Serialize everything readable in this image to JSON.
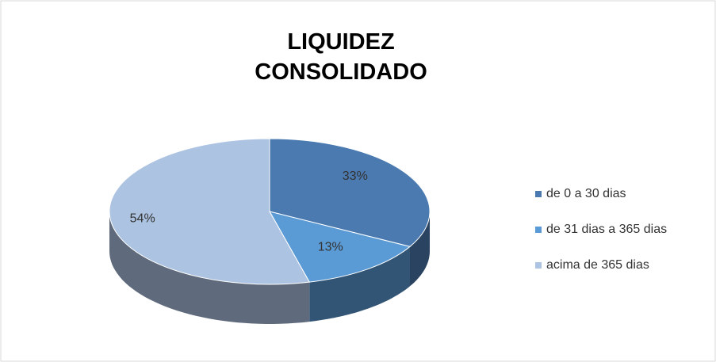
{
  "chart_data": {
    "type": "pie",
    "title": "LIQUIDEZ CONSOLIDADO",
    "categories": [
      "de 0 a 30 dias",
      "de 31 dias a 365 dias",
      "acima de 365 dias"
    ],
    "values": [
      33,
      13,
      54
    ],
    "value_labels": [
      "33%",
      "13%",
      "54%"
    ],
    "colors": [
      "#4a7ab0",
      "#5b9bd5",
      "#adc3e2"
    ],
    "legend": "right"
  }
}
